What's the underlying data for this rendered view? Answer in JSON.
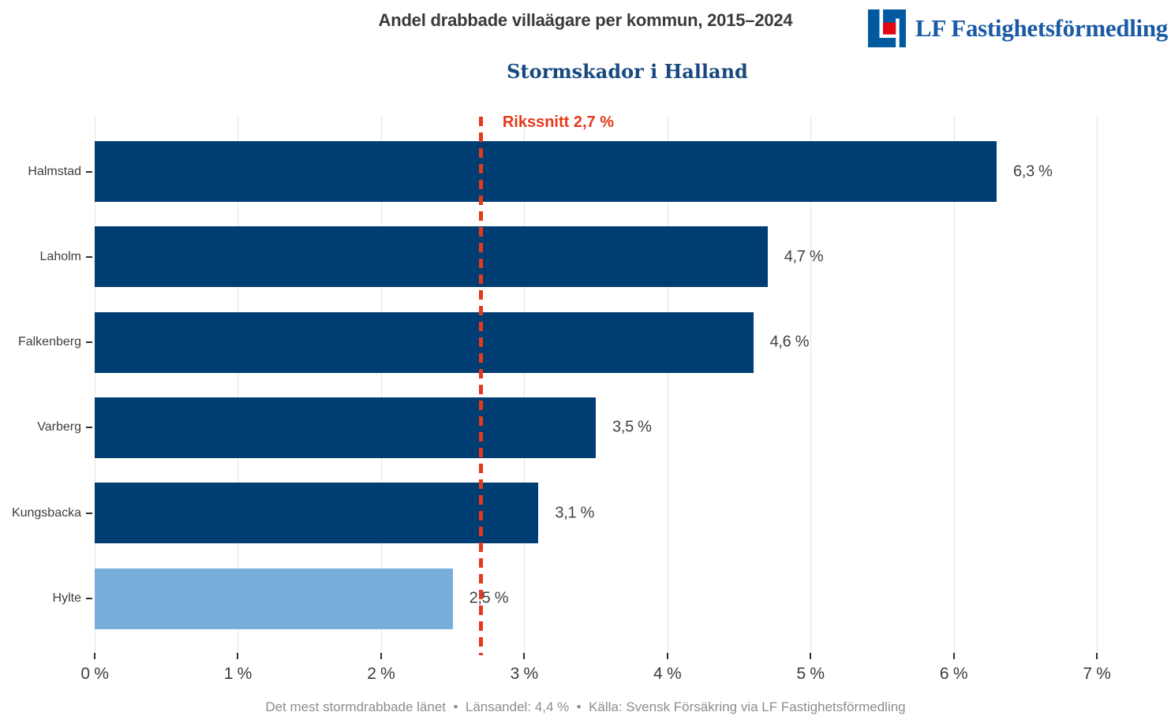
{
  "header": {
    "title": "Andel drabbade villaägare per kommun, 2015–2024",
    "subtitle": "Stormskador i Halland"
  },
  "logo": {
    "name": "LF Fastighetsförmedling",
    "icon": "lf-blue-square-with-white-L-and-red-square"
  },
  "chart_data": {
    "type": "bar",
    "orientation": "horizontal",
    "title": "Andel drabbade villaägare per kommun, 2015–2024",
    "subtitle": "Stormskador i Halland",
    "categories": [
      "Halmstad",
      "Laholm",
      "Falkenberg",
      "Varberg",
      "Kungsbacka",
      "Hylte"
    ],
    "values": [
      6.3,
      4.7,
      4.6,
      3.5,
      3.1,
      2.5
    ],
    "value_labels": [
      "6,3 %",
      "4,7 %",
      "4,6 %",
      "3,5 %",
      "3,1 %",
      "2,5 %"
    ],
    "highlighted_category": "Hylte",
    "xlim": [
      0,
      7
    ],
    "xticks": [
      0,
      1,
      2,
      3,
      4,
      5,
      6,
      7
    ],
    "xtick_labels": [
      "0 %",
      "1 %",
      "2 %",
      "3 %",
      "4 %",
      "5 %",
      "6 %",
      "7 %"
    ],
    "grid": "vertical-gridlines",
    "legend": "none",
    "reference_line": {
      "value": 2.7,
      "label": "Rikssnitt 2,7 %"
    },
    "caption_parts": [
      "Det mest stormdrabbade länet",
      "Länsandel: 4,4 %",
      "Källa: Svensk Försäkring via LF Fastighetsförmedling"
    ]
  },
  "colors": {
    "bar": "#003d73",
    "bar_highlight": "#77aedc",
    "reference": "#e5391b",
    "grid": "#e4e4e4",
    "title": "#3a3a3a",
    "subtitle": "#17497f",
    "text": "#3d3d3d",
    "footer": "#8d8d8d",
    "logo_blue": "#005aa0",
    "logo_red": "#e30613",
    "logo_text": "#1b5aa4"
  }
}
